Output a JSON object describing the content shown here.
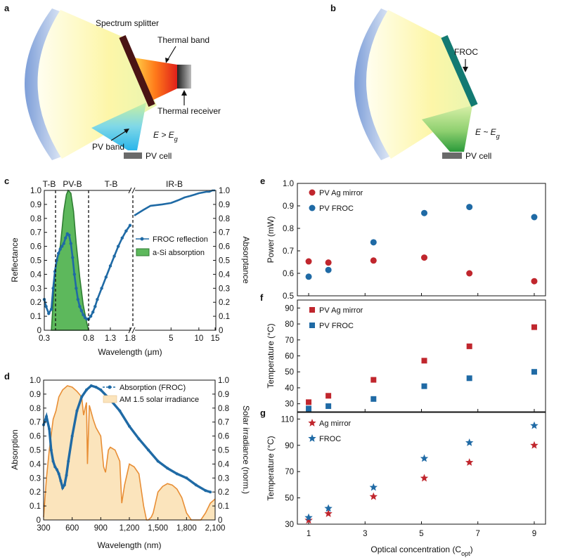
{
  "panels": {
    "a": {
      "letter": "a",
      "spectrum_splitter": "Spectrum splitter",
      "thermal_band": "Thermal band",
      "thermal_receiver": "Thermal receiver",
      "pv_band": "PV band",
      "pv_cell": "PV cell",
      "condition": "E > E",
      "condition_sub": "g"
    },
    "b": {
      "letter": "b",
      "froc": "FROC",
      "pv_cell": "PV cell",
      "condition": "E ~ E",
      "condition_sub": "g"
    },
    "c": {
      "letter": "c"
    },
    "d": {
      "letter": "d"
    },
    "e": {
      "letter": "e"
    },
    "f": {
      "letter": "f"
    },
    "g": {
      "letter": "g"
    }
  },
  "colors": {
    "red": "#c0262d",
    "blue": "#1f6aa5",
    "orange": "#e88e35",
    "irradiance_fill": "#fbe4bc",
    "asi_fill": "#5db85c",
    "asi_line": "#2e7d32",
    "teal": "#1a8a80",
    "splitter": "#5a1a1a"
  },
  "chart_data": [
    {
      "id": "c",
      "type": "line",
      "xlabel": "Wavelength (μm)",
      "ylabel": "Reflectance",
      "ylabel_right": "Absorptance",
      "ylim": [
        0,
        1.0
      ],
      "yticks": [
        0,
        0.1,
        0.2,
        0.3,
        0.4,
        0.5,
        0.6,
        0.7,
        0.8,
        0.9,
        1.0
      ],
      "ytick_labels": [
        "0",
        "0.1",
        "0.2",
        "0.3",
        "0.4",
        "0.5",
        "0.6",
        "0.7",
        "0.8",
        "0.9",
        "1.0"
      ],
      "xticks": [
        "0.3",
        "0.8",
        "1.3",
        "1.8",
        "5",
        "10",
        "15"
      ],
      "band_labels": [
        "T-B",
        "PV-B",
        "T-B",
        "IR-B"
      ],
      "axis_break": "broken x-axis between 1.8 and ~2 μm",
      "legend": [
        "FROC reflection",
        "a-Si absorption"
      ],
      "series": [
        {
          "name": "FROC reflection",
          "x": [
            0.3,
            0.32,
            0.35,
            0.38,
            0.4,
            0.42,
            0.44,
            0.46,
            0.48,
            0.5,
            0.52,
            0.54,
            0.56,
            0.58,
            0.6,
            0.62,
            0.64,
            0.66,
            0.68,
            0.7,
            0.72,
            0.74,
            0.76,
            0.78,
            0.8,
            0.85,
            0.9,
            0.95,
            1.0,
            1.1,
            1.2,
            1.3,
            1.4,
            1.5,
            1.6,
            1.7,
            1.8
          ],
          "y": [
            0.22,
            0.17,
            0.12,
            0.15,
            0.3,
            0.42,
            0.5,
            0.55,
            0.58,
            0.6,
            0.62,
            0.66,
            0.69,
            0.68,
            0.62,
            0.52,
            0.4,
            0.3,
            0.22,
            0.17,
            0.14,
            0.11,
            0.09,
            0.08,
            0.08,
            0.1,
            0.13,
            0.17,
            0.22,
            0.3,
            0.38,
            0.46,
            0.53,
            0.6,
            0.66,
            0.71,
            0.75
          ]
        },
        {
          "name": "FROC reflection (IR)",
          "x": [
            2.0,
            2.5,
            3.0,
            4.0,
            5.0,
            6.0,
            7.0,
            8.0,
            9.0,
            10.0,
            11.0,
            12.0,
            13.0,
            14.0,
            15.0
          ],
          "y": [
            0.82,
            0.86,
            0.89,
            0.9,
            0.91,
            0.93,
            0.95,
            0.96,
            0.97,
            0.98,
            0.985,
            0.99,
            0.99,
            1.0,
            1.0
          ]
        },
        {
          "name": "a-Si absorption",
          "x": [
            0.38,
            0.4,
            0.42,
            0.45,
            0.48,
            0.5,
            0.52,
            0.55,
            0.57,
            0.6,
            0.63,
            0.66,
            0.7,
            0.74,
            0.78,
            0.8
          ],
          "y": [
            0.0,
            0.2,
            0.4,
            0.52,
            0.6,
            0.72,
            0.85,
            0.97,
            1.0,
            0.98,
            0.85,
            0.62,
            0.38,
            0.18,
            0.05,
            0.0
          ]
        }
      ]
    },
    {
      "id": "d",
      "type": "line",
      "xlabel": "Wavelength (nm)",
      "ylabel": "Absorption",
      "ylabel_right": "Solar irradiance (norm.)",
      "xlim": [
        300,
        2100
      ],
      "ylim": [
        0,
        1.0
      ],
      "xticks": [
        300,
        600,
        900,
        1200,
        1500,
        1800,
        2100
      ],
      "xtick_labels": [
        "300",
        "600",
        "900",
        "1,200",
        "1,500",
        "1,800",
        "2,100"
      ],
      "yticks": [
        0,
        0.1,
        0.2,
        0.3,
        0.4,
        0.5,
        0.6,
        0.7,
        0.8,
        0.9,
        1.0
      ],
      "ytick_labels": [
        "0",
        "0.1",
        "0.2",
        "0.3",
        "0.4",
        "0.5",
        "0.6",
        "0.7",
        "0.8",
        "0.9",
        "1.0"
      ],
      "legend": [
        "Absorption (FROC)",
        "AM 1.5 solar irradiance"
      ],
      "series": [
        {
          "name": "Absorption (FROC)",
          "x": [
            300,
            330,
            360,
            380,
            400,
            420,
            440,
            460,
            480,
            500,
            520,
            540,
            560,
            600,
            650,
            700,
            750,
            800,
            850,
            900,
            1000,
            1100,
            1200,
            1300,
            1400,
            1500,
            1600,
            1700,
            1800,
            1900,
            2000,
            2050
          ],
          "y": [
            0.68,
            0.74,
            0.65,
            0.5,
            0.42,
            0.38,
            0.36,
            0.33,
            0.28,
            0.23,
            0.25,
            0.32,
            0.42,
            0.6,
            0.78,
            0.88,
            0.93,
            0.96,
            0.95,
            0.93,
            0.86,
            0.78,
            0.67,
            0.58,
            0.5,
            0.42,
            0.37,
            0.33,
            0.3,
            0.25,
            0.21,
            0.2
          ]
        },
        {
          "name": "AM 1.5 solar irradiance",
          "x": [
            300,
            330,
            360,
            400,
            430,
            460,
            500,
            550,
            600,
            650,
            700,
            720,
            750,
            760,
            780,
            820,
            850,
            900,
            930,
            950,
            980,
            1000,
            1050,
            1100,
            1120,
            1150,
            1200,
            1250,
            1300,
            1350,
            1380,
            1400,
            1430,
            1450,
            1500,
            1550,
            1600,
            1650,
            1700,
            1750,
            1800,
            1850,
            1900,
            1950,
            2000,
            2050,
            2100
          ],
          "y": [
            0.02,
            0.3,
            0.5,
            0.72,
            0.78,
            0.88,
            0.93,
            0.96,
            0.95,
            0.92,
            0.88,
            0.75,
            0.84,
            0.4,
            0.82,
            0.72,
            0.66,
            0.6,
            0.38,
            0.34,
            0.5,
            0.52,
            0.5,
            0.42,
            0.12,
            0.25,
            0.4,
            0.38,
            0.33,
            0.1,
            0.0,
            0.0,
            0.02,
            0.05,
            0.2,
            0.24,
            0.26,
            0.25,
            0.22,
            0.16,
            0.05,
            0.0,
            0.0,
            0.0,
            0.05,
            0.12,
            0.15
          ]
        }
      ]
    },
    {
      "id": "e",
      "type": "scatter",
      "ylabel": "Power (mW)",
      "ylim": [
        0.5,
        1.0
      ],
      "yticks": [
        0.5,
        0.6,
        0.7,
        0.8,
        0.9,
        1.0
      ],
      "ytick_labels": [
        "0.5",
        "0.6",
        "0.7",
        "0.8",
        "0.9",
        "1.0"
      ],
      "xlim": [
        0.6,
        9.4
      ],
      "legend": [
        "PV Ag mirror",
        "PV FROC"
      ],
      "series": [
        {
          "name": "PV Ag mirror",
          "x": [
            1,
            1.7,
            3.3,
            5.1,
            6.7,
            9
          ],
          "y": [
            0.653,
            0.648,
            0.657,
            0.67,
            0.6,
            0.565
          ]
        },
        {
          "name": "PV FROC",
          "x": [
            1,
            1.7,
            3.3,
            5.1,
            6.7,
            9
          ],
          "y": [
            0.585,
            0.615,
            0.738,
            0.868,
            0.895,
            0.85
          ]
        }
      ]
    },
    {
      "id": "f",
      "type": "scatter",
      "ylabel": "Temperature (°C)",
      "ylim": [
        25,
        95
      ],
      "yticks": [
        30,
        40,
        50,
        60,
        70,
        80,
        90
      ],
      "ytick_labels": [
        "30",
        "40",
        "50",
        "60",
        "70",
        "80",
        "90"
      ],
      "xlim": [
        0.6,
        9.4
      ],
      "legend": [
        "PV Ag mirror",
        "PV FROC"
      ],
      "series": [
        {
          "name": "PV Ag mirror",
          "x": [
            1,
            1.7,
            3.3,
            5.1,
            6.7,
            9
          ],
          "y": [
            31,
            35,
            45,
            57,
            66,
            78
          ]
        },
        {
          "name": "PV FROC",
          "x": [
            1,
            1.7,
            3.3,
            5.1,
            6.7,
            9
          ],
          "y": [
            27,
            28.5,
            33,
            41,
            46,
            50
          ]
        }
      ]
    },
    {
      "id": "g",
      "type": "scatter",
      "xlabel": "Optical concentration (C",
      "xlabel_sub": "opt",
      "xlabel_end": ")",
      "ylabel": "Temperature (°C)",
      "ylim": [
        30,
        115
      ],
      "yticks": [
        30,
        50,
        70,
        90,
        110
      ],
      "ytick_labels": [
        "30",
        "50",
        "70",
        "90",
        "110"
      ],
      "xlim": [
        0.6,
        9.4
      ],
      "xticks": [
        1,
        3,
        5,
        7,
        9
      ],
      "xtick_labels": [
        "1",
        "3",
        "5",
        "7",
        "9"
      ],
      "legend": [
        "Ag mirror",
        "FROC"
      ],
      "series": [
        {
          "name": "Ag mirror",
          "x": [
            1,
            1.7,
            3.3,
            5.1,
            6.7,
            9
          ],
          "y": [
            33,
            38,
            51,
            65,
            77,
            90
          ]
        },
        {
          "name": "FROC",
          "x": [
            1,
            1.7,
            3.3,
            5.1,
            6.7,
            9
          ],
          "y": [
            35,
            42,
            58,
            80,
            92,
            105
          ]
        }
      ]
    }
  ]
}
